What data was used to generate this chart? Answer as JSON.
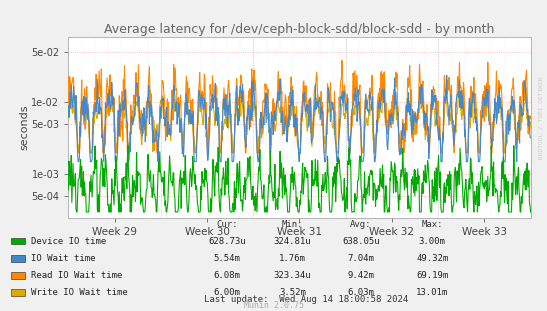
{
  "title": "Average latency for /dev/ceph-block-sdd/block-sdd - by month",
  "ylabel": "seconds",
  "background_color": "#f0f0f0",
  "plot_bg_color": "#ffffff",
  "grid_h_color": "#ffcccc",
  "grid_v_color": "#ccccdd",
  "title_color": "#666666",
  "legend_items": [
    {
      "label": "Device IO time",
      "color": "#00aa00"
    },
    {
      "label": "IO Wait time",
      "color": "#4488cc"
    },
    {
      "label": "Read IO Wait time",
      "color": "#ff8800"
    },
    {
      "label": "Write IO Wait time",
      "color": "#ddaa00"
    }
  ],
  "table_headers": [
    "Cur:",
    "Min:",
    "Avg:",
    "Max:"
  ],
  "table_data": [
    [
      "628.73u",
      "324.81u",
      "638.05u",
      "3.00m"
    ],
    [
      "5.54m",
      "1.76m",
      "7.04m",
      "49.32m"
    ],
    [
      "6.08m",
      "323.34u",
      "9.42m",
      "69.19m"
    ],
    [
      "6.00m",
      "3.52m",
      "6.03m",
      "13.01m"
    ]
  ],
  "last_update": "Last update:  Wed Aug 14 18:00:58 2024",
  "munin_version": "Munin 2.0.75",
  "rrdtool_label": "RRDTOOL / TOBI OETIKER",
  "weeks": [
    "Week 29",
    "Week 30",
    "Week 31",
    "Week 32",
    "Week 33"
  ],
  "ytick_vals": [
    0.0005,
    0.001,
    0.005,
    0.01,
    0.05
  ],
  "ylim_min": 0.00025,
  "ylim_max": 0.08,
  "n_points": 800,
  "week_borders": [
    0.0,
    1.0,
    2.0,
    3.0,
    4.0,
    5.0
  ]
}
